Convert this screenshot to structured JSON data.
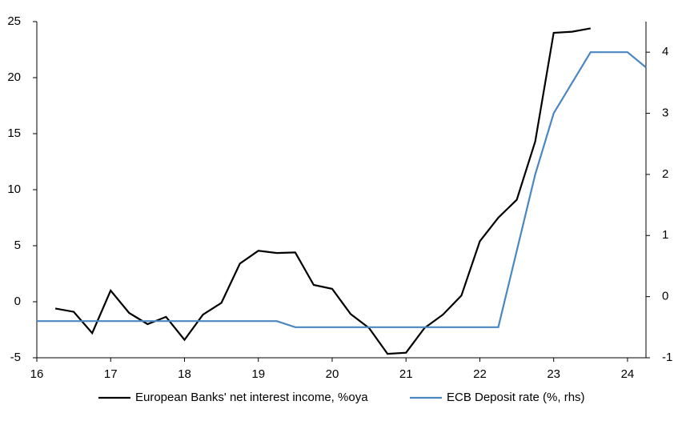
{
  "chart_data": {
    "type": "line",
    "xlim": [
      16,
      24.25
    ],
    "xticks": [
      16,
      17,
      18,
      19,
      20,
      21,
      22,
      23,
      24
    ],
    "ylim": [
      -5,
      25
    ],
    "yticks": [
      -5,
      0,
      5,
      10,
      15,
      20,
      25
    ],
    "y2lim": [
      -1,
      4.5
    ],
    "y2ticks": [
      -1,
      0,
      1,
      2,
      3,
      4
    ],
    "series": [
      {
        "name": "European Banks' net interest income, %oya",
        "color": "#000000",
        "x": [
          16.25,
          16.5,
          16.75,
          17,
          17.25,
          17.5,
          17.75,
          18,
          18.25,
          18.5,
          18.75,
          19,
          19.25,
          19.5,
          19.75,
          20,
          20.25,
          20.5,
          20.75,
          21,
          21.25,
          21.5,
          21.75,
          22,
          22.25,
          22.5,
          22.75,
          23,
          23.25,
          23.5
        ],
        "values": [
          -0.6,
          -0.9,
          -2.8,
          1.0,
          -1.0,
          -2.0,
          -1.35,
          -3.4,
          -1.15,
          -0.1,
          3.4,
          4.55,
          4.35,
          4.4,
          1.5,
          1.15,
          -1.1,
          -2.35,
          -4.65,
          -4.55,
          -2.35,
          -1.15,
          0.55,
          5.4,
          7.5,
          9.1,
          14.3,
          24.0,
          24.1,
          24.4
        ]
      },
      {
        "name": "ECB Deposit rate (%, rhs)",
        "color": "#4a87c0",
        "axis": "y2",
        "x": [
          16,
          16.25,
          16.5,
          16.75,
          17,
          17.25,
          17.5,
          17.75,
          18,
          18.25,
          18.5,
          18.75,
          19,
          19.25,
          19.5,
          19.75,
          20,
          20.25,
          20.5,
          20.75,
          21,
          21.25,
          21.5,
          21.75,
          22,
          22.25,
          22.5,
          22.75,
          23,
          23.25,
          23.5,
          23.75,
          24,
          24.25
        ],
        "values": [
          -0.4,
          -0.4,
          -0.4,
          -0.4,
          -0.4,
          -0.4,
          -0.4,
          -0.4,
          -0.4,
          -0.4,
          -0.4,
          -0.4,
          -0.4,
          -0.4,
          -0.5,
          -0.5,
          -0.5,
          -0.5,
          -0.5,
          -0.5,
          -0.5,
          -0.5,
          -0.5,
          -0.5,
          -0.5,
          -0.5,
          0.75,
          2.0,
          3.0,
          3.5,
          4.0,
          4.0,
          4.0,
          3.75
        ]
      }
    ]
  }
}
